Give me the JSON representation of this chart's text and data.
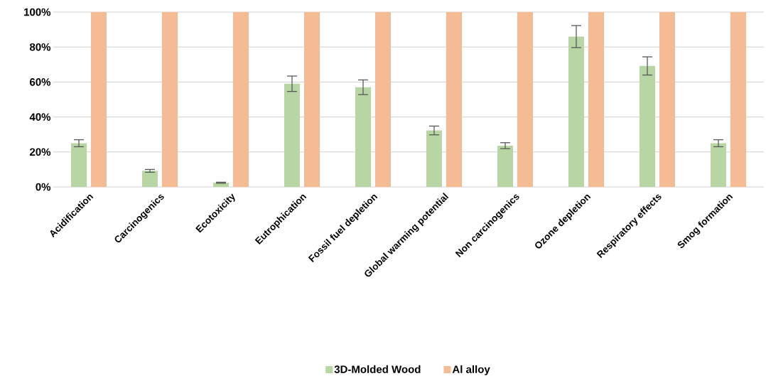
{
  "chart_data": {
    "type": "bar",
    "categories": [
      "Acidification",
      "Carcinogenics",
      "Ecotoxicity",
      "Eutrophication",
      "Fossil fuel depletion",
      "Global warming potential",
      "Non carcinogenics",
      "Ozone depletion",
      "Respiratory effects",
      "Smog formation"
    ],
    "series": [
      {
        "name": "3D-Molded Wood",
        "color": "#b7d6a3",
        "values": [
          25,
          9.2,
          2.4,
          59,
          57,
          32.3,
          23.6,
          86,
          69.2,
          25
        ],
        "errors": [
          2,
          0.8,
          0.3,
          4.4,
          4.2,
          2.5,
          1.7,
          6.3,
          5.2,
          2
        ]
      },
      {
        "name": "Al alloy",
        "color": "#f5bb94",
        "values": [
          100,
          100,
          100,
          100,
          100,
          100,
          100,
          100,
          100,
          100
        ]
      }
    ],
    "ylim": [
      0,
      100
    ],
    "yticks": [
      {
        "value": 0,
        "label": "0%"
      },
      {
        "value": 20,
        "label": "20%"
      },
      {
        "value": 40,
        "label": "40%"
      },
      {
        "value": 60,
        "label": "60%"
      },
      {
        "value": 80,
        "label": "80%"
      },
      {
        "value": 100,
        "label": "100%"
      }
    ],
    "grid": "y",
    "legend": "bottom"
  }
}
